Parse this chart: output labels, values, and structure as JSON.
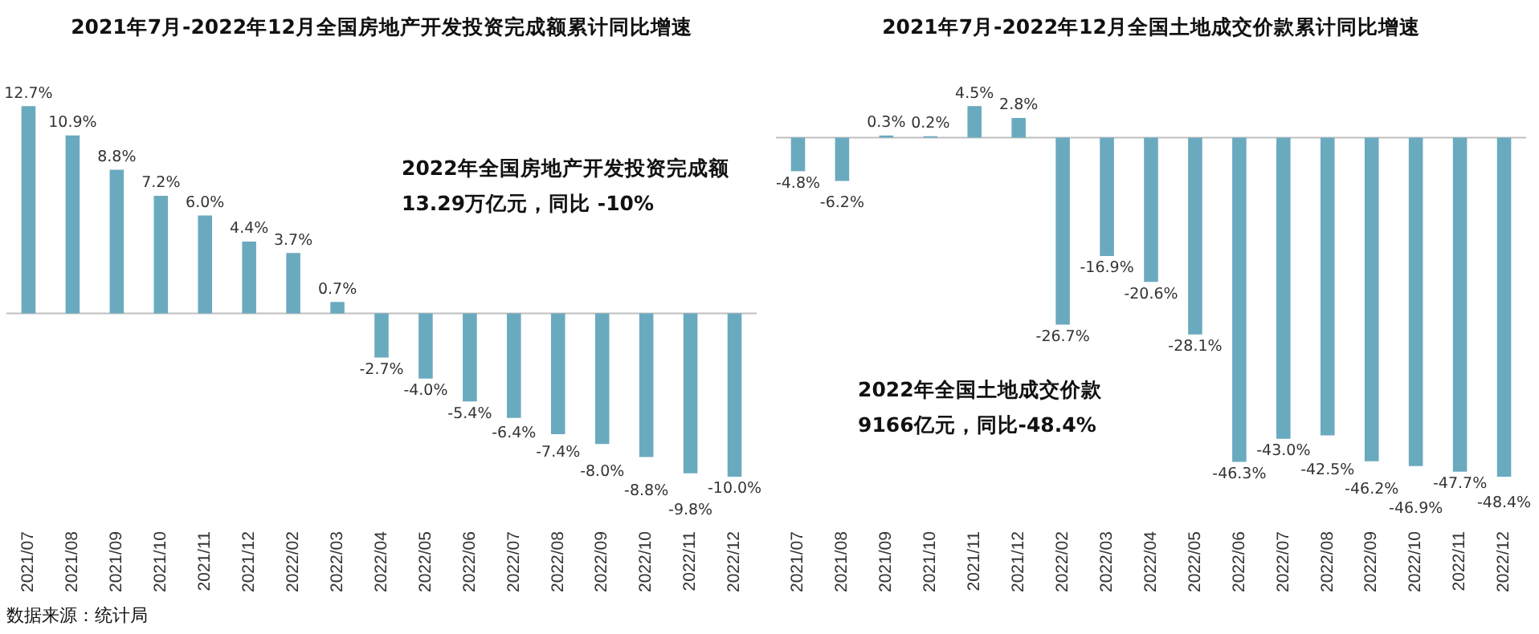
{
  "chart_data": [
    {
      "type": "bar",
      "title": "2021年7月-2022年12月全国房地产开发投资完成额累计同比增速",
      "categories": [
        "2021/07",
        "2021/08",
        "2021/09",
        "2021/10",
        "2021/11",
        "2021/12",
        "2022/02",
        "2022/03",
        "2022/04",
        "2022/05",
        "2022/06",
        "2022/07",
        "2022/08",
        "2022/09",
        "2022/10",
        "2022/11",
        "2022/12"
      ],
      "values": [
        12.7,
        10.9,
        8.8,
        7.2,
        6.0,
        4.4,
        3.7,
        0.7,
        -2.7,
        -4.0,
        -5.4,
        -6.4,
        -7.4,
        -8.0,
        -8.8,
        -9.8,
        -10.0
      ],
      "value_labels": [
        "12.7%",
        "10.9%",
        "8.8%",
        "7.2%",
        "6.0%",
        "4.4%",
        "3.7%",
        "0.7%",
        "-2.7%",
        "-4.0%",
        "-5.4%",
        "-6.4%",
        "-7.4%",
        "-8.0%",
        "-8.8%",
        "-9.8%",
        "-10.0%"
      ],
      "color": "#6aaabf",
      "legend": false,
      "grid": false,
      "annotations": [
        "2022年全国房地产开发投资完成额13.29万亿元，同比 -10%",
        "数据来源：统计局"
      ]
    },
    {
      "type": "bar",
      "title": "2021年7月-2022年12月全国土地成交价款累计同比增速",
      "categories": [
        "2021/07",
        "2021/08",
        "2021/09",
        "2021/10",
        "2021/11",
        "2021/12",
        "2022/02",
        "2022/03",
        "2022/04",
        "2022/05",
        "2022/06",
        "2022/07",
        "2022/08",
        "2022/09",
        "2022/10",
        "2022/11",
        "2022/12"
      ],
      "values": [
        -4.8,
        -6.2,
        0.3,
        0.2,
        4.5,
        2.8,
        -26.7,
        -16.9,
        -20.6,
        -28.1,
        -46.3,
        -43.0,
        -42.5,
        -46.2,
        -46.9,
        -47.7,
        -48.4
      ],
      "value_labels": [
        "-4.8%",
        "-6.2%",
        "0.3%",
        "0.2%",
        "4.5%",
        "2.8%",
        "-26.7%",
        "-16.9%",
        "-20.6%",
        "-28.1%",
        "-46.3%",
        "-43.0%",
        "-42.5%",
        "-46.2%",
        "-46.9%",
        "-47.7%",
        "-48.4%"
      ],
      "color": "#6aaabf",
      "legend": false,
      "grid": false,
      "annotations": [
        "2022年全国土地成交价款9166亿元，同比-48.4%"
      ]
    }
  ]
}
